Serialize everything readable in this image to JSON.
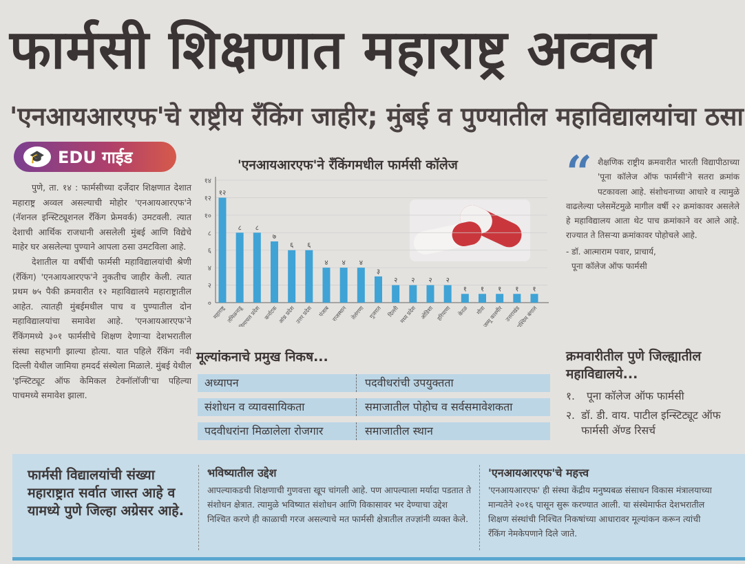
{
  "headline": "फार्मसी शिक्षणात महाराष्ट्र अव्वल",
  "subheadline": "'एनआयआरएफ'चे राष्ट्रीय रँकिंग जाहीर; मुंबई व पुण्यातील महाविद्यालयांचा ठसा",
  "badge": {
    "icon": "graduation-cap-icon",
    "label": "EDU गाईड",
    "colors": [
      "#7b3f8f",
      "#d65a4a"
    ]
  },
  "article": {
    "paragraphs": [
      "पुणे, ता. १४ : फार्मसीच्या दर्जेदार शिक्षणात देशात महाराष्ट्र अव्वल असल्याची मोहोर 'एनआयआरएफ'ने (नॅशनल इन्स्टिट्यूशनल रँकिंग फ्रेमवर्क) उमटवली. त्यात देशाची आर्थिक राजधानी असलेली मुंबई आणि विद्येचे माहेर घर असलेल्या पुण्याने आपला ठसा उमटविला आहे.",
      "देशातील या वर्षीची फार्मसी महाविद्यालयांची श्रेणी (रँकिंग) 'एनआयआरएफ'ने नुकतीच जाहीर केली. त्यात प्रथम ७५ पैकी क्रमवारीत १२ महाविद्यालये महाराष्ट्रातील आहेत. त्यातही मुंबईमधील पाच व पुण्यातील दोन महाविद्यालयांचा समावेश आहे. 'एनआयआरएफ'ने रँकिंगमध्ये ३०१ फार्मसीचे शिक्षण देणाऱ्या देशभरातील संस्था सहभागी झाल्या होत्या. यात पहिले रँकिंग नवी दिल्ली येथील जामिया हमदर्द संस्थेला मिळाले. मुंबई येथील 'इन्स्टिट्यूट ऑफ केमिकल टेक्नॉलॉजी'चा पहिल्या पाचमध्ये समावेश झाला."
    ]
  },
  "chart_data": {
    "type": "bar",
    "title": "'एनआयआरएफ'ने रँकिंगमधील फार्मसी कॉलेज",
    "categories": [
      "महाराष्ट्र",
      "तमिळनाडू",
      "हिमाचल प्रदेश",
      "कर्नाटक",
      "आंध्र प्रदेश",
      "उत्तर प्रदेश",
      "पंजाब",
      "राजस्थान",
      "तेलंगणा",
      "गुजरात",
      "दिल्ली",
      "मध्य प्रदेश",
      "ओडिशा",
      "हरियाणा",
      "केरळ",
      "गोवा",
      "जम्मू काश्मीर",
      "उत्तराखंड",
      "पश्चिम बंगाल"
    ],
    "values": [
      12,
      8,
      8,
      7,
      6,
      6,
      4,
      4,
      4,
      3,
      2,
      2,
      2,
      2,
      1,
      1,
      1,
      1,
      1
    ],
    "value_labels": [
      "१२",
      "८",
      "८",
      "७",
      "६",
      "६",
      "४",
      "४",
      "४",
      "३",
      "२",
      "२",
      "२",
      "२",
      "१",
      "१",
      "१",
      "१",
      "१"
    ],
    "yticks": [
      "०",
      "२",
      "४",
      "६",
      "८",
      "१०",
      "१२",
      "१४"
    ],
    "ylim": [
      0,
      14
    ],
    "grid": true,
    "bar_color": "#3fa3d6",
    "xlabel": "",
    "ylabel": ""
  },
  "quote": {
    "text": "शैक्षणिक राष्ट्रीय क्रमवारीत भारती विद्यापीठाच्या 'पूना कॉलेज ऑफ फार्मसी'ने सतरा क्रमांक पटकावला आहे. संशोधनाच्या आधारे व त्यामुळे वाढलेल्या प्लेसमेंटमुळे मागील वर्षी २२ क्रमांकावर असलेले हे महाविद्यालय आता थेट पाच क्रमांकाने वर आले आहे. राज्यात ते तिसऱ्या क्रमांकावर पोहोचले आहे.",
    "attribution_line1": "- डॉ. आत्माराम पवार, प्राचार्य,",
    "attribution_line2": "पूना कॉलेज ऑफ फार्मसी",
    "mark_color": "#4a7bb4"
  },
  "criteria": {
    "title": "मूल्यांकनाचे प्रमुख निकष...",
    "rows": [
      [
        "अध्यापन",
        "पदवीधरांची उपयुक्तता"
      ],
      [
        "संशोधन व व्यावसायिकता",
        "समाजातील पोहोच व सर्वसमावेशकता"
      ],
      [
        "पदवीधरांना मिळालेला रोजगार",
        "समाजातील स्थान"
      ]
    ]
  },
  "pune": {
    "title": "क्रमवारीतील पुणे जिल्ह्यातील महाविद्यालये...",
    "items": [
      {
        "num": "१.",
        "text": "पूना कॉलेज ऑफ फार्मसी"
      },
      {
        "num": "२.",
        "text": "डॉ. डी. वाय. पाटील इन्स्टिट्यूट ऑफ फार्मसी ॲण्ड रिसर्च"
      }
    ]
  },
  "bottom": {
    "highlight": "फार्मसी विद्यालयांची संख्या महाराष्ट्रात सर्वात जास्त आहे व यामध्ये पुणे जिल्हा अग्रेसर आहे.",
    "future": {
      "title": "भविष्यातील उद्देश",
      "text": "आपल्याकडची शिक्षणाची गुणवत्ता खूप चांगली आहे. पण आपल्याला मर्यादा पडतात ते संशोधन क्षेत्रात. त्यामुळे भविष्यात संशोधन आणि विकासावर भर देण्याचा उद्देश निश्चित करणे ही काळाची गरज असल्याचे मत फार्मसी क्षेत्रातील तज्ज्ञांनी व्यक्त केले."
    },
    "importance": {
      "title": "'एनआयआरएफ'चे महत्त्व",
      "text": "'एनआयआरएफ' ही संस्था केंद्रीय मनुष्यबळ संसाधन विकास मंत्रालयाच्या मान्यतेने २०१६ पासून सुरू करण्यात आली. या संस्थेमार्फत देशभरातील शिक्षण संस्थांची निश्चित निकषांच्या आधारावर मूल्यांकन करून त्यांची रँकिंग नेमकेपणाने दिले जाते."
    },
    "background_color": "#c6dce9"
  }
}
